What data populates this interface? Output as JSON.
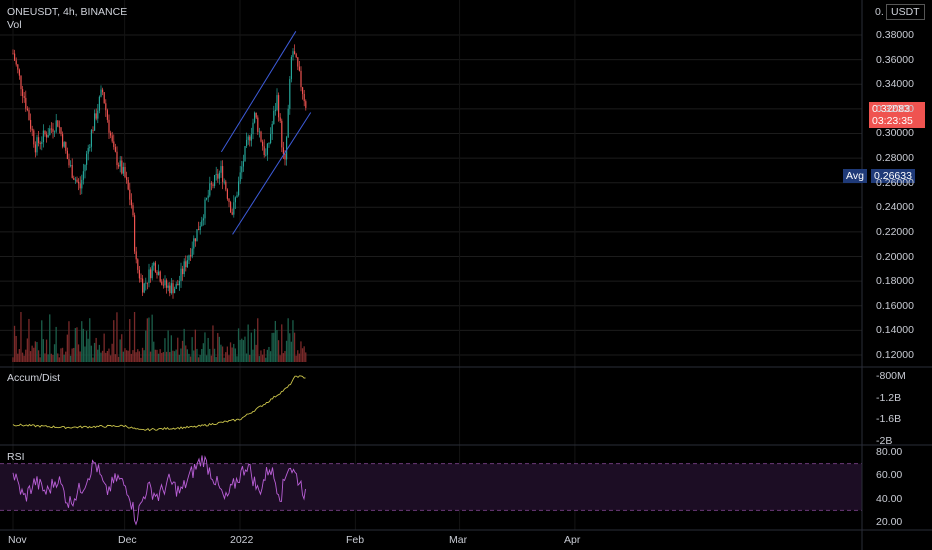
{
  "header": {
    "symbol_line": "ONEUSDT, 4h, BINANCE",
    "vol_label": "Vol"
  },
  "currency": {
    "scale_zero": "0.",
    "unit": "USDT"
  },
  "price_badge": {
    "value": "0.32083",
    "countdown": "03:23:35"
  },
  "avg_badge": {
    "label": "Avg",
    "value": "0.26633"
  },
  "panes": {
    "ad_label": "Accum/Dist",
    "rsi_label": "RSI"
  },
  "colors": {
    "background": "#000000",
    "up": "#26a69a",
    "down": "#ef5350",
    "channel": "#3d5bd9",
    "ad_line": "#c8c24a",
    "rsi_line": "#b95fd6",
    "rsi_band": "#1c0d24",
    "price_badge": "#ef5350",
    "avg_badge": "#1f3a78"
  },
  "chart_data": {
    "type": "candlestick",
    "symbol": "ONEUSDT",
    "interval": "4h",
    "exchange": "BINANCE",
    "x_ticks": [
      "Nov",
      "Dec",
      "2022",
      "Feb",
      "Mar",
      "Apr"
    ],
    "y_ticks": [
      "0.38000",
      "0.36000",
      "0.34000",
      "0.32000",
      "0.30000",
      "0.28000",
      "0.26000",
      "0.24000",
      "0.22000",
      "0.20000",
      "0.18000",
      "0.16000",
      "0.14000",
      "0.12000"
    ],
    "ylim": [
      0.11,
      0.39
    ],
    "last_price": 0.32083,
    "avg_price": 0.26633,
    "price_path": [
      {
        "date": "2021-11-01",
        "price": 0.365
      },
      {
        "date": "2021-11-04",
        "price": 0.33
      },
      {
        "date": "2021-11-07",
        "price": 0.29
      },
      {
        "date": "2021-11-10",
        "price": 0.3
      },
      {
        "date": "2021-11-13",
        "price": 0.31
      },
      {
        "date": "2021-11-16",
        "price": 0.275
      },
      {
        "date": "2021-11-19",
        "price": 0.255
      },
      {
        "date": "2021-11-22",
        "price": 0.3
      },
      {
        "date": "2021-11-25",
        "price": 0.335
      },
      {
        "date": "2021-11-28",
        "price": 0.285
      },
      {
        "date": "2021-12-01",
        "price": 0.265
      },
      {
        "date": "2021-12-03",
        "price": 0.24
      },
      {
        "date": "2021-12-04",
        "price": 0.195
      },
      {
        "date": "2021-12-06",
        "price": 0.175
      },
      {
        "date": "2021-12-09",
        "price": 0.195
      },
      {
        "date": "2021-12-12",
        "price": 0.175
      },
      {
        "date": "2021-12-15",
        "price": 0.175
      },
      {
        "date": "2021-12-18",
        "price": 0.2
      },
      {
        "date": "2021-12-21",
        "price": 0.225
      },
      {
        "date": "2021-12-24",
        "price": 0.255
      },
      {
        "date": "2021-12-27",
        "price": 0.27
      },
      {
        "date": "2021-12-30",
        "price": 0.235
      },
      {
        "date": "2022-01-02",
        "price": 0.28
      },
      {
        "date": "2022-01-05",
        "price": 0.315
      },
      {
        "date": "2022-01-08",
        "price": 0.28
      },
      {
        "date": "2022-01-11",
        "price": 0.33
      },
      {
        "date": "2022-01-13",
        "price": 0.27
      },
      {
        "date": "2022-01-15",
        "price": 0.37
      },
      {
        "date": "2022-01-17",
        "price": 0.345
      },
      {
        "date": "2022-01-19",
        "price": 0.32
      }
    ],
    "channel": {
      "upper": [
        {
          "date": "2021-12-27",
          "price": 0.285
        },
        {
          "date": "2022-01-16",
          "price": 0.383
        }
      ],
      "lower": [
        {
          "date": "2021-12-30",
          "price": 0.218
        },
        {
          "date": "2022-01-20",
          "price": 0.317
        }
      ]
    },
    "accum_dist": {
      "ticks": [
        "-800M",
        "-1.2B",
        "-1.6B",
        "-2B"
      ],
      "ylim": [
        -2000000000,
        -750000000
      ],
      "path": [
        {
          "date": "2021-11-01",
          "value": -1700000000
        },
        {
          "date": "2021-11-15",
          "value": -1750000000
        },
        {
          "date": "2021-12-01",
          "value": -1720000000
        },
        {
          "date": "2021-12-05",
          "value": -1800000000
        },
        {
          "date": "2021-12-20",
          "value": -1740000000
        },
        {
          "date": "2022-01-01",
          "value": -1600000000
        },
        {
          "date": "2022-01-08",
          "value": -1300000000
        },
        {
          "date": "2022-01-14",
          "value": -1000000000
        },
        {
          "date": "2022-01-16",
          "value": -800000000
        },
        {
          "date": "2022-01-19",
          "value": -830000000
        }
      ]
    },
    "rsi": {
      "ticks": [
        "80.00",
        "60.00",
        "40.00",
        "20.00"
      ],
      "ylim": [
        15,
        85
      ],
      "bands": [
        70,
        30
      ],
      "path": [
        {
          "date": "2021-11-01",
          "value": 62
        },
        {
          "date": "2021-11-04",
          "value": 40
        },
        {
          "date": "2021-11-07",
          "value": 55
        },
        {
          "date": "2021-11-10",
          "value": 45
        },
        {
          "date": "2021-11-13",
          "value": 58
        },
        {
          "date": "2021-11-16",
          "value": 36
        },
        {
          "date": "2021-11-20",
          "value": 52
        },
        {
          "date": "2021-11-23",
          "value": 72
        },
        {
          "date": "2021-11-26",
          "value": 45
        },
        {
          "date": "2021-11-29",
          "value": 58
        },
        {
          "date": "2021-12-02",
          "value": 48
        },
        {
          "date": "2021-12-04",
          "value": 22
        },
        {
          "date": "2021-12-07",
          "value": 50
        },
        {
          "date": "2021-12-10",
          "value": 42
        },
        {
          "date": "2021-12-13",
          "value": 55
        },
        {
          "date": "2021-12-16",
          "value": 45
        },
        {
          "date": "2021-12-19",
          "value": 62
        },
        {
          "date": "2021-12-22",
          "value": 75
        },
        {
          "date": "2021-12-25",
          "value": 58
        },
        {
          "date": "2021-12-28",
          "value": 38
        },
        {
          "date": "2021-12-31",
          "value": 55
        },
        {
          "date": "2022-01-03",
          "value": 70
        },
        {
          "date": "2022-01-06",
          "value": 45
        },
        {
          "date": "2022-01-09",
          "value": 68
        },
        {
          "date": "2022-01-12",
          "value": 42
        },
        {
          "date": "2022-01-14",
          "value": 70
        },
        {
          "date": "2022-01-17",
          "value": 55
        },
        {
          "date": "2022-01-19",
          "value": 40
        }
      ]
    }
  }
}
